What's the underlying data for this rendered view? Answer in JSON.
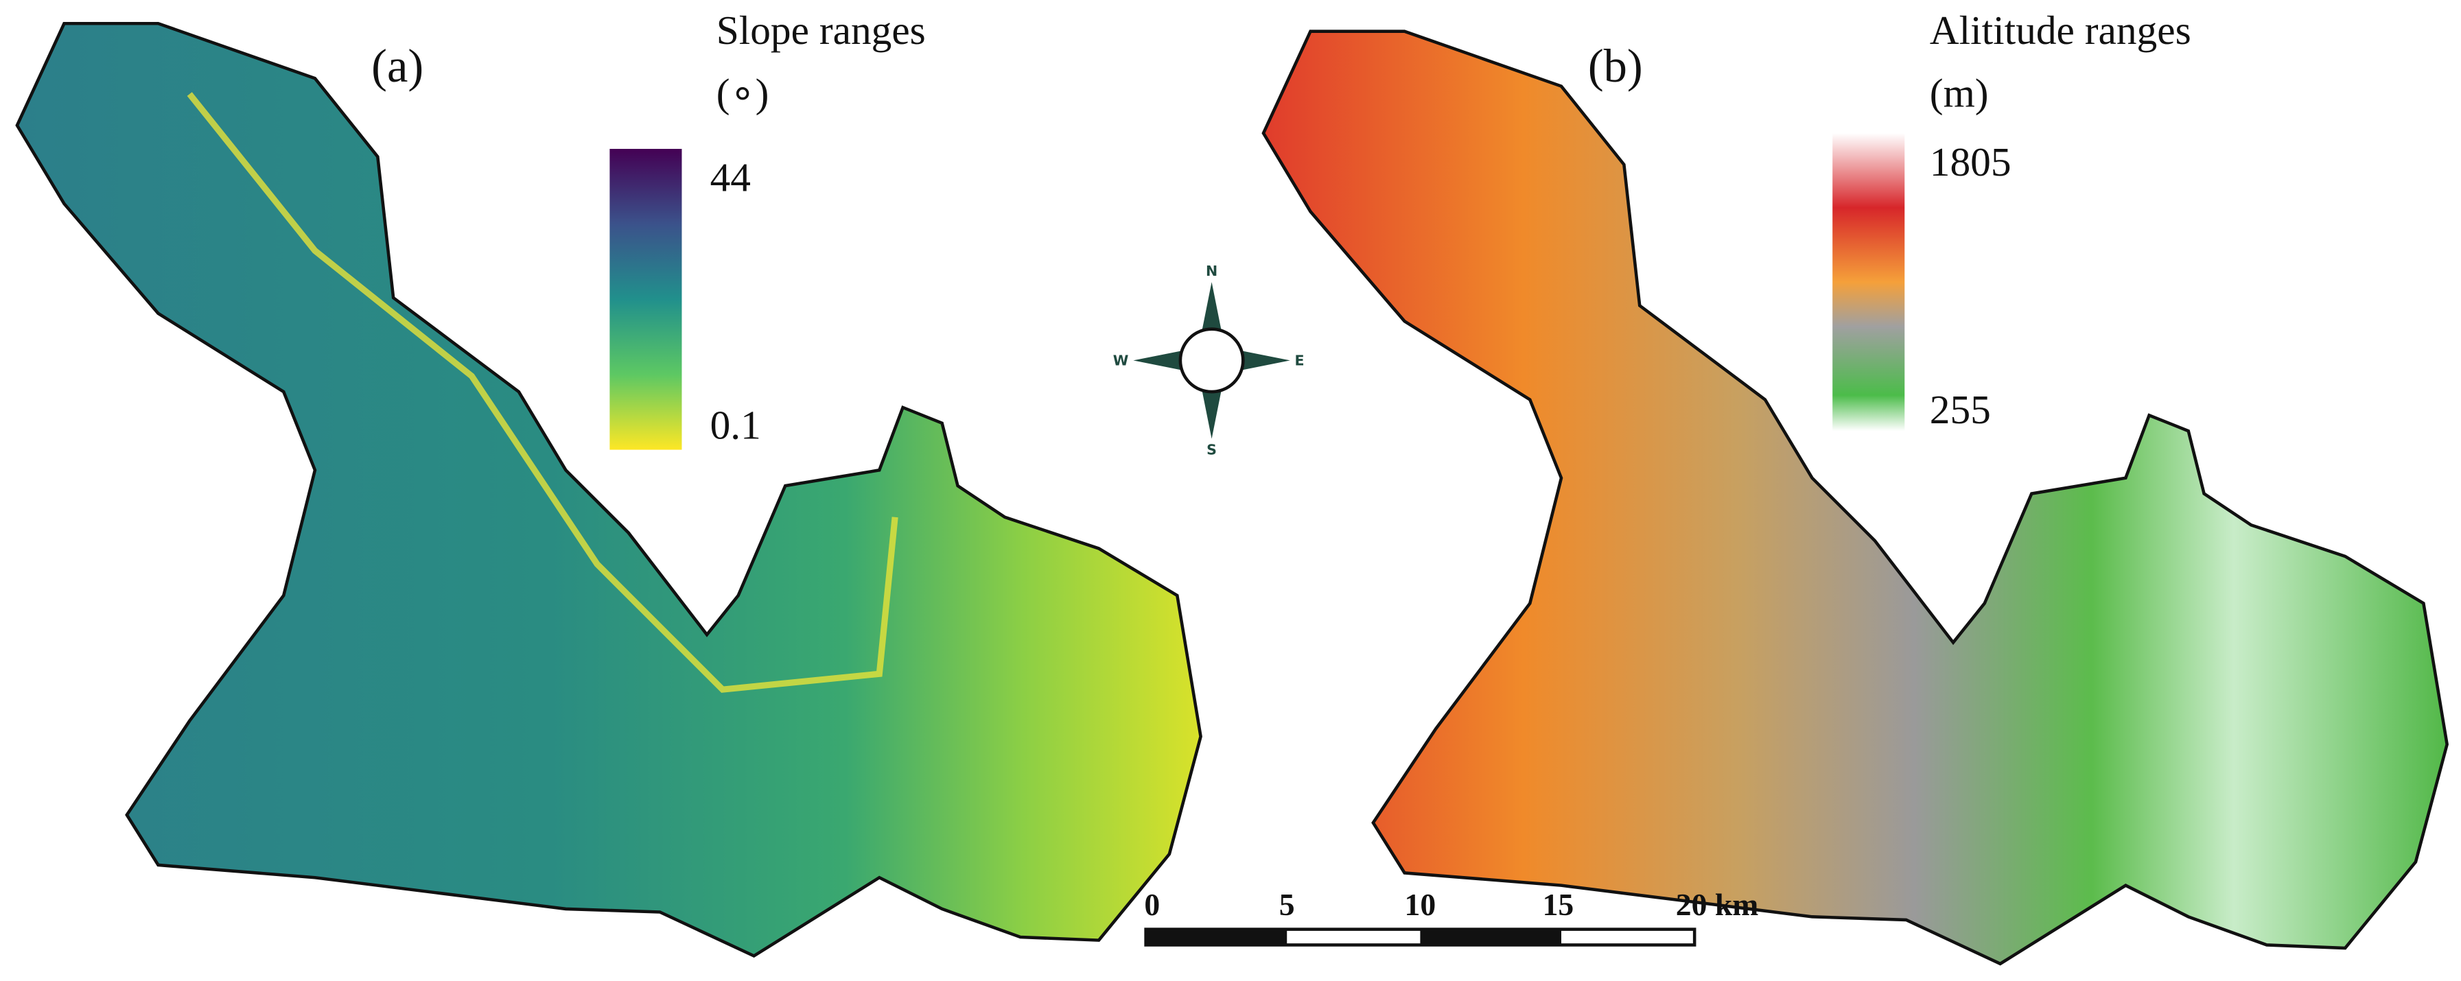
{
  "panels": [
    {
      "label": "(a)",
      "legend": {
        "title": "Slope ranges",
        "unit": "(∘)",
        "max": "44",
        "min": "0.1"
      }
    },
    {
      "label": "(b)",
      "legend": {
        "title": "Alititude ranges",
        "unit": "(m)",
        "max": "1805",
        "min": "255"
      }
    }
  ],
  "compass": {
    "n": "N",
    "s": "S",
    "w": "W",
    "e": "E"
  },
  "scale_bar": {
    "labels": [
      "0",
      "5",
      "10",
      "15",
      "20 km"
    ]
  }
}
